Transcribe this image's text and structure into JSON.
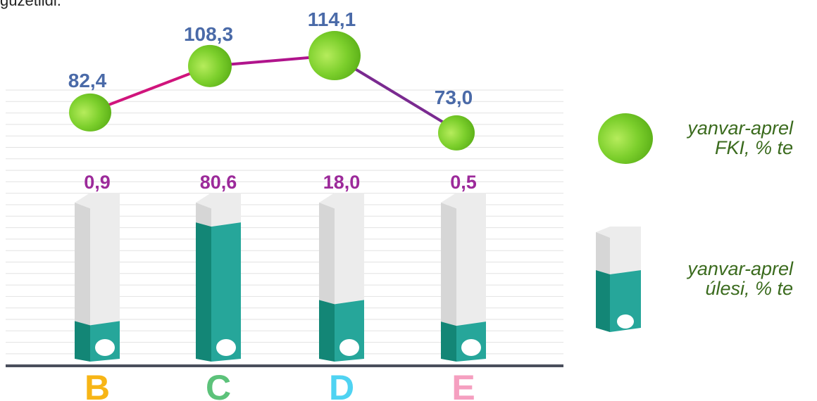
{
  "header_fragment": "güzetildi.",
  "chart_data": {
    "type": "bar+line",
    "categories": [
      "B",
      "C",
      "D",
      "E"
    ],
    "category_colors": [
      "#f7b516",
      "#5cc27a",
      "#4fd3f2",
      "#f59fc0"
    ],
    "series": [
      {
        "name": "yanvar-aprel FKI, % te",
        "type": "line",
        "values": [
          82.4,
          108.3,
          114.1,
          73.0
        ],
        "labels": [
          "82,4",
          "108,3",
          "114,1",
          "73,0"
        ],
        "marker_color": "#7ccf2c",
        "line_colors": [
          "#d0147c",
          "#b0148c",
          "#7a2a90"
        ]
      },
      {
        "name": "yanvar-aprel úlesi, % te",
        "type": "bar",
        "values": [
          0.9,
          80.6,
          18.0,
          0.5
        ],
        "labels": [
          "0,9",
          "80,6",
          "18,0",
          "0,5"
        ],
        "bar_color": "#26a69a",
        "bar_side_color": "#138676",
        "empty_color": "#ececec"
      }
    ],
    "legend": {
      "line_label_lines": [
        "yanvar-aprel",
        "FKI, % te"
      ],
      "bar_label_lines": [
        "yanvar-aprel",
        "úlesi, % te"
      ],
      "position": "right"
    },
    "grid": true,
    "colors": {
      "line_label": "#4a6aa8",
      "bar_label": "#9c2a9a",
      "legend_text": "#3b6b1e",
      "axis": "#4a4f5c"
    }
  }
}
